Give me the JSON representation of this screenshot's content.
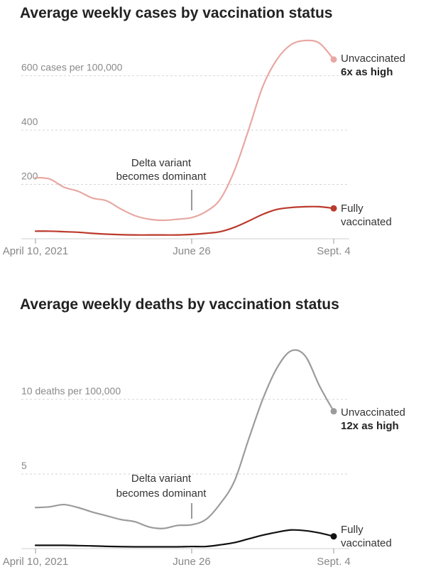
{
  "chart_data": [
    {
      "type": "line",
      "title": "Average weekly cases by vaccination status",
      "x_tick_labels": [
        "April 10, 2021",
        "June 26",
        "Sept. 4"
      ],
      "y_tick_labels": [
        "600 cases per 100,000",
        "400",
        "200"
      ],
      "y_ticks": [
        600,
        400,
        200
      ],
      "ylim": [
        0,
        720
      ],
      "xlim": [
        0,
        21
      ],
      "annotation": {
        "lines": [
          "Delta variant",
          "becomes dominant"
        ],
        "x": 11
      },
      "series": [
        {
          "name": "Unvaccinated",
          "color": "#e8a8a3",
          "end_label": "Unvaccinated",
          "end_note": "6x as high",
          "x": [
            0,
            1,
            2,
            3,
            4,
            5,
            6,
            7,
            8,
            9,
            10,
            11,
            12,
            13,
            14,
            15,
            16,
            17,
            18,
            19,
            20,
            21
          ],
          "values": [
            225,
            220,
            190,
            175,
            150,
            140,
            110,
            85,
            72,
            68,
            72,
            78,
            100,
            145,
            250,
            400,
            560,
            660,
            715,
            730,
            720,
            660
          ]
        },
        {
          "name": "Fully vaccinated",
          "color": "#bb3a2c",
          "end_label": "Fully",
          "end_label_2": "vaccinated",
          "x": [
            0,
            1,
            2,
            3,
            4,
            5,
            6,
            7,
            8,
            9,
            10,
            11,
            12,
            13,
            14,
            15,
            16,
            17,
            18,
            19,
            20,
            21
          ],
          "values": [
            28,
            28,
            26,
            24,
            20,
            17,
            15,
            14,
            14,
            14,
            14,
            16,
            20,
            26,
            42,
            65,
            90,
            108,
            115,
            118,
            118,
            112
          ]
        }
      ]
    },
    {
      "type": "line",
      "title": "Average weekly deaths by vaccination status",
      "x_tick_labels": [
        "April 10, 2021",
        "June 26",
        "Sept. 4"
      ],
      "y_tick_labels": [
        "10 deaths per 100,000",
        "5"
      ],
      "y_ticks": [
        10,
        5
      ],
      "ylim": [
        0,
        13.2
      ],
      "xlim": [
        0,
        21
      ],
      "annotation": {
        "lines": [
          "Delta variant",
          "becomes dominant"
        ],
        "x": 11
      },
      "series": [
        {
          "name": "Unvaccinated",
          "color": "#9b9b9b",
          "end_label": "Unvaccinated",
          "end_note": "12x as high",
          "x": [
            0,
            1,
            2,
            3,
            4,
            5,
            6,
            7,
            8,
            9,
            10,
            11,
            12,
            13,
            14,
            15,
            16,
            17,
            18,
            19,
            20,
            21
          ],
          "values": [
            2.75,
            2.8,
            2.95,
            2.75,
            2.45,
            2.2,
            1.95,
            1.8,
            1.45,
            1.35,
            1.55,
            1.6,
            1.95,
            3.0,
            4.5,
            7.3,
            10.0,
            12.1,
            13.25,
            12.9,
            10.9,
            9.2
          ]
        },
        {
          "name": "Fully vaccinated",
          "color": "#111111",
          "end_label": "Fully",
          "end_label_2": "vaccinated",
          "x": [
            0,
            1,
            2,
            3,
            4,
            5,
            6,
            7,
            8,
            9,
            10,
            11,
            12,
            13,
            14,
            15,
            16,
            17,
            18,
            19,
            20,
            21
          ],
          "values": [
            0.22,
            0.22,
            0.22,
            0.2,
            0.18,
            0.15,
            0.13,
            0.12,
            0.12,
            0.12,
            0.12,
            0.14,
            0.14,
            0.25,
            0.4,
            0.65,
            0.9,
            1.1,
            1.25,
            1.2,
            1.05,
            0.82
          ]
        }
      ]
    }
  ]
}
